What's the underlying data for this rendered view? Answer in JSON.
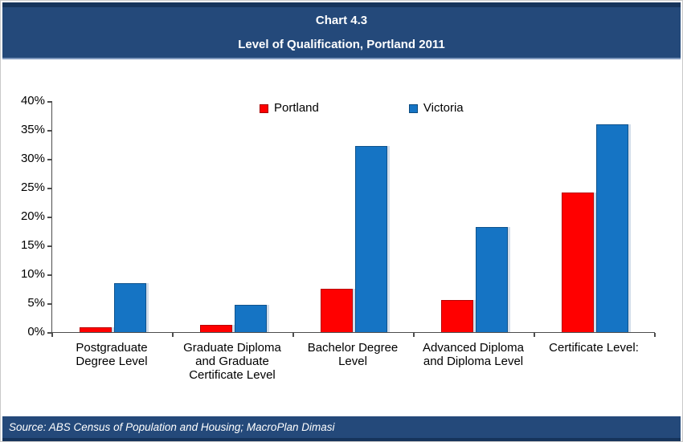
{
  "header": {
    "title_line1": "Chart 4.3",
    "title_line2": "Level of Qualification, Portland 2011"
  },
  "source": {
    "text": "Source: ABS Census of Population and Housing; MacroPlan Dimasi"
  },
  "colors": {
    "band_background": "#24497A",
    "band_dark_edge": "#16345B",
    "portland_red": "#FF0000",
    "victoria_blue": "#1574C4",
    "axis": "#4d4d4d",
    "text": "#000000",
    "title_text": "#ffffff"
  },
  "chart_data": {
    "type": "bar",
    "title": "Chart 4.3",
    "subtitle": "Level of Qualification, Portland 2011",
    "categories": [
      "Postgraduate Degree Level",
      "Graduate Diploma and Graduate Certificate Level",
      "Bachelor Degree Level",
      "Advanced Diploma and Diploma Level",
      "Certificate Level:"
    ],
    "series": [
      {
        "name": "Portland",
        "color": "#FF0000",
        "values": [
          0.8,
          1.2,
          7.5,
          5.5,
          24.2
        ]
      },
      {
        "name": "Victoria",
        "color": "#1574C4",
        "values": [
          8.5,
          4.7,
          32.2,
          18.2,
          36.0
        ]
      }
    ],
    "ylabel": "",
    "xlabel": "",
    "ylim": [
      0,
      40
    ],
    "ytick_step": 5,
    "ytick_suffix": "%",
    "grid": false,
    "legend_position": "top-center"
  }
}
